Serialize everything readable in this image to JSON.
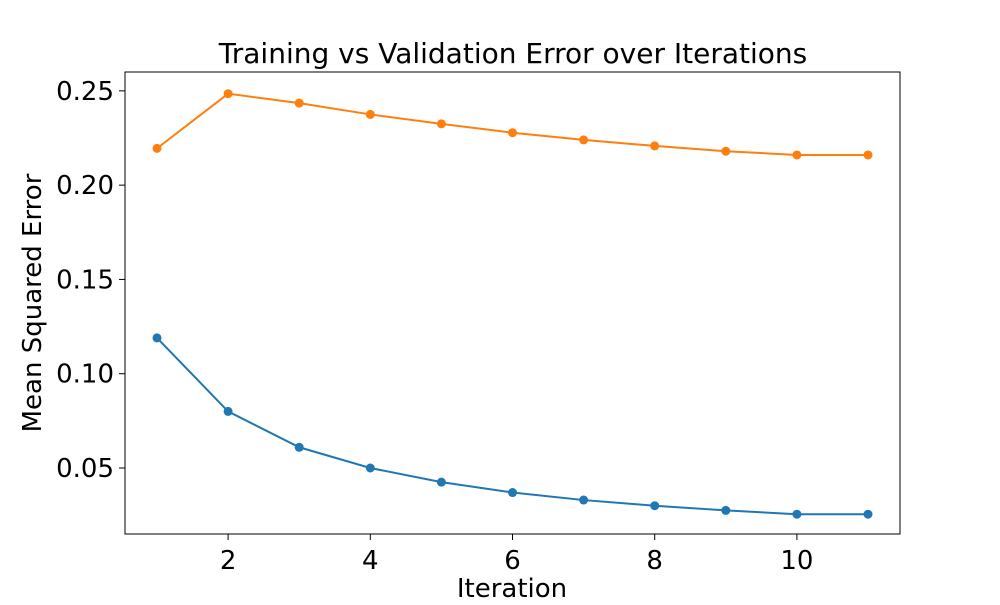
{
  "chart_data": {
    "type": "line",
    "title": "Training vs Validation Error over Iterations",
    "xlabel": "Iteration",
    "ylabel": "Mean Squared Error",
    "x": [
      1,
      2,
      3,
      4,
      5,
      6,
      7,
      8,
      9,
      10,
      11
    ],
    "xlim": [
      0.55,
      11.45
    ],
    "ylim": [
      0.015,
      0.26
    ],
    "xticks": [
      2,
      4,
      6,
      8,
      10
    ],
    "xtick_labels": [
      "2",
      "4",
      "6",
      "8",
      "10"
    ],
    "yticks": [
      0.05,
      0.1,
      0.15,
      0.2,
      0.25
    ],
    "ytick_labels": [
      "0.05",
      "0.10",
      "0.15",
      "0.20",
      "0.25"
    ],
    "grid": false,
    "series": [
      {
        "color": "#1f77b4",
        "marker": "circle",
        "values": [
          0.119,
          0.08,
          0.061,
          0.05,
          0.0425,
          0.037,
          0.033,
          0.03,
          0.0275,
          0.0255,
          0.0255
        ]
      },
      {
        "color": "#ff7f0e",
        "marker": "circle",
        "values": [
          0.2195,
          0.2485,
          0.2435,
          0.2375,
          0.2325,
          0.2278,
          0.224,
          0.2208,
          0.218,
          0.216,
          0.216
        ]
      }
    ]
  }
}
